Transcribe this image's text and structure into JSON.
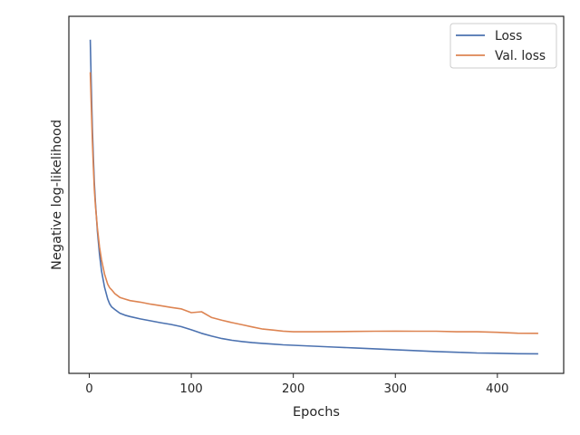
{
  "chart_data": {
    "type": "line",
    "title": "",
    "xlabel": "Epochs",
    "ylabel": "Negative log-likelihood",
    "xlim": [
      -20,
      465
    ],
    "ylim": [
      0,
      1
    ],
    "y_tick_labels_shown": false,
    "xticks": [
      0,
      100,
      200,
      300,
      400
    ],
    "grid": false,
    "legend_position": "top-right",
    "x": [
      1,
      2,
      3,
      4,
      5,
      6,
      8,
      10,
      12,
      15,
      18,
      20,
      22,
      25,
      30,
      35,
      40,
      50,
      60,
      70,
      80,
      90,
      100,
      110,
      120,
      130,
      140,
      150,
      160,
      170,
      180,
      190,
      200,
      220,
      240,
      260,
      280,
      300,
      320,
      340,
      360,
      380,
      400,
      420,
      440
    ],
    "series": [
      {
        "name": "Loss",
        "color": "#4c72b0",
        "values": [
          0.97,
          0.82,
          0.7,
          0.61,
          0.53,
          0.47,
          0.38,
          0.31,
          0.26,
          0.21,
          0.175,
          0.16,
          0.15,
          0.142,
          0.13,
          0.123,
          0.118,
          0.11,
          0.104,
          0.098,
          0.093,
          0.087,
          0.078,
          0.068,
          0.06,
          0.053,
          0.048,
          0.044,
          0.04,
          0.037,
          0.034,
          0.031,
          0.029,
          0.026,
          0.023,
          0.021,
          0.019,
          0.017,
          0.015,
          0.013,
          0.011,
          0.009,
          0.008,
          0.006,
          0.005
        ]
      },
      {
        "name": "Val. loss",
        "color": "#dd8452",
        "values": [
          0.87,
          0.76,
          0.66,
          0.58,
          0.51,
          0.46,
          0.39,
          0.33,
          0.29,
          0.245,
          0.215,
          0.205,
          0.2,
          0.19,
          0.18,
          0.176,
          0.172,
          0.167,
          0.16,
          0.154,
          0.147,
          0.141,
          0.128,
          0.13,
          0.112,
          0.104,
          0.098,
          0.093,
          0.088,
          0.083,
          0.081,
          0.078,
          0.076,
          0.075,
          0.074,
          0.073,
          0.072,
          0.071,
          0.07,
          0.07,
          0.069,
          0.07,
          0.07,
          0.069,
          0.07
        ]
      }
    ]
  }
}
